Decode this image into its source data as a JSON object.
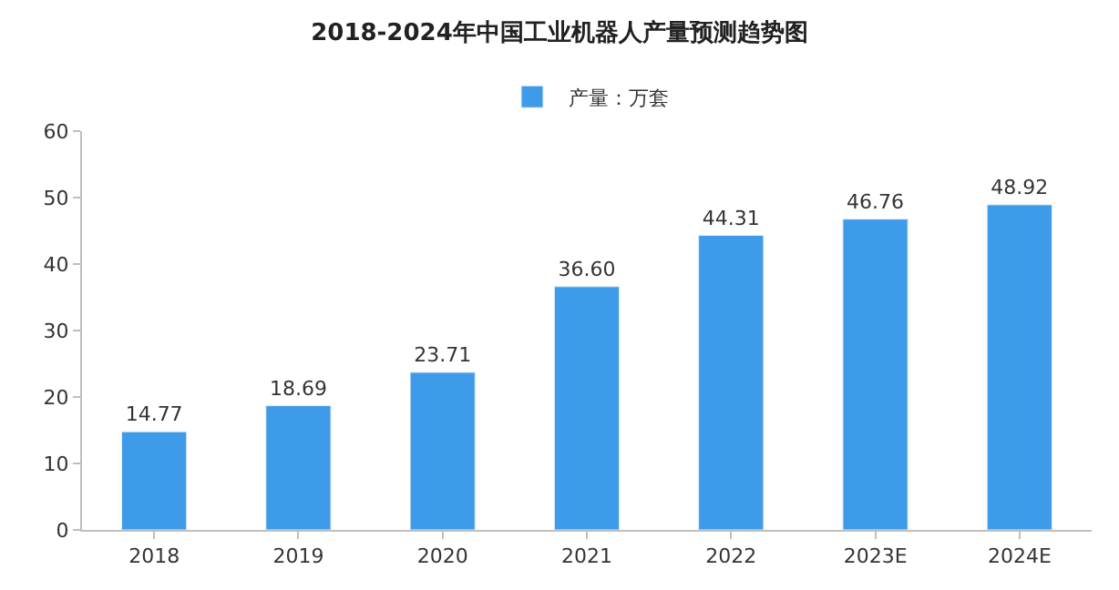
{
  "chart_data": {
    "type": "bar",
    "title": "2018-2024年中国工业机器人产量预测趋势图",
    "categories": [
      "2018",
      "2019",
      "2020",
      "2021",
      "2022",
      "2023E",
      "2024E"
    ],
    "series": [
      {
        "name": "产量：万套",
        "color": "#3d9be9",
        "values": [
          14.77,
          18.69,
          23.71,
          36.6,
          44.31,
          46.76,
          48.92
        ],
        "value_labels": [
          "14.77",
          "18.69",
          "23.71",
          "36.60",
          "44.31",
          "46.76",
          "48.92"
        ]
      }
    ],
    "ylim": [
      0,
      60
    ],
    "yticks": [
      0,
      10,
      20,
      30,
      40,
      50,
      60
    ],
    "grid": false,
    "legend": "top"
  }
}
